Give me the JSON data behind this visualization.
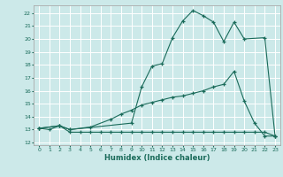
{
  "xlabel": "Humidex (Indice chaleur)",
  "bg_color": "#cce9e9",
  "grid_color": "#ffffff",
  "line_color": "#1a6b5a",
  "xlim": [
    -0.5,
    23.5
  ],
  "ylim": [
    11.8,
    22.6
  ],
  "xticks": [
    0,
    1,
    2,
    3,
    4,
    5,
    6,
    7,
    8,
    9,
    10,
    11,
    12,
    13,
    14,
    15,
    16,
    17,
    18,
    19,
    20,
    21,
    22,
    23
  ],
  "yticks": [
    12,
    13,
    14,
    15,
    16,
    17,
    18,
    19,
    20,
    21,
    22
  ],
  "line1_x": [
    0,
    1,
    2,
    3,
    4,
    5,
    6,
    7,
    8,
    9,
    10,
    11,
    12,
    13,
    14,
    15,
    16,
    17,
    18,
    19,
    20,
    21,
    22,
    23
  ],
  "line1_y": [
    13.1,
    13.0,
    13.3,
    12.8,
    12.8,
    12.8,
    12.8,
    12.8,
    12.8,
    12.8,
    12.8,
    12.8,
    12.8,
    12.8,
    12.8,
    12.8,
    12.8,
    12.8,
    12.8,
    12.8,
    12.8,
    12.8,
    12.8,
    12.5
  ],
  "line2_x": [
    0,
    2,
    3,
    5,
    7,
    8,
    9,
    10,
    11,
    12,
    13,
    14,
    15,
    16,
    17,
    18,
    19,
    20,
    21,
    22,
    23
  ],
  "line2_y": [
    13.1,
    13.3,
    13.0,
    13.2,
    13.8,
    14.2,
    14.5,
    14.9,
    15.1,
    15.3,
    15.5,
    15.6,
    15.8,
    16.0,
    16.3,
    16.5,
    17.5,
    15.2,
    13.5,
    12.5,
    12.5
  ],
  "line3_x": [
    0,
    2,
    3,
    9,
    10,
    11,
    12,
    13,
    14,
    15,
    16,
    17,
    18,
    19,
    20,
    22,
    23
  ],
  "line3_y": [
    13.1,
    13.3,
    13.0,
    13.5,
    16.3,
    17.9,
    18.1,
    20.1,
    21.4,
    22.2,
    21.8,
    21.3,
    19.8,
    21.3,
    20.0,
    20.1,
    12.5
  ]
}
